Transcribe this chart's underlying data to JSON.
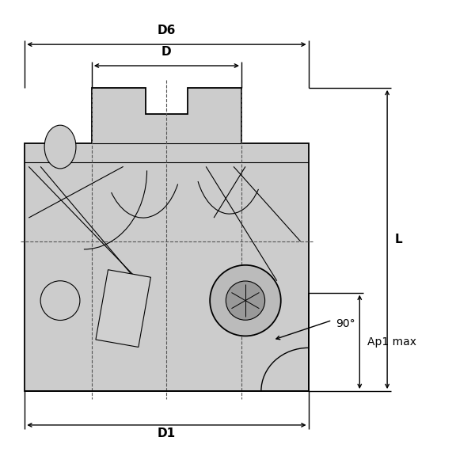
{
  "bg_color": "#ffffff",
  "body_fill": "#cccccc",
  "line_color": "#000000",
  "dashed_color": "#555555",
  "fig_width": 6.0,
  "fig_height": 6.0,
  "dpi": 100,
  "labels": {
    "D6": "D6",
    "D": "D",
    "D1": "D1",
    "L": "L",
    "Ap1max": "Ap1 max",
    "angle": "90°"
  }
}
